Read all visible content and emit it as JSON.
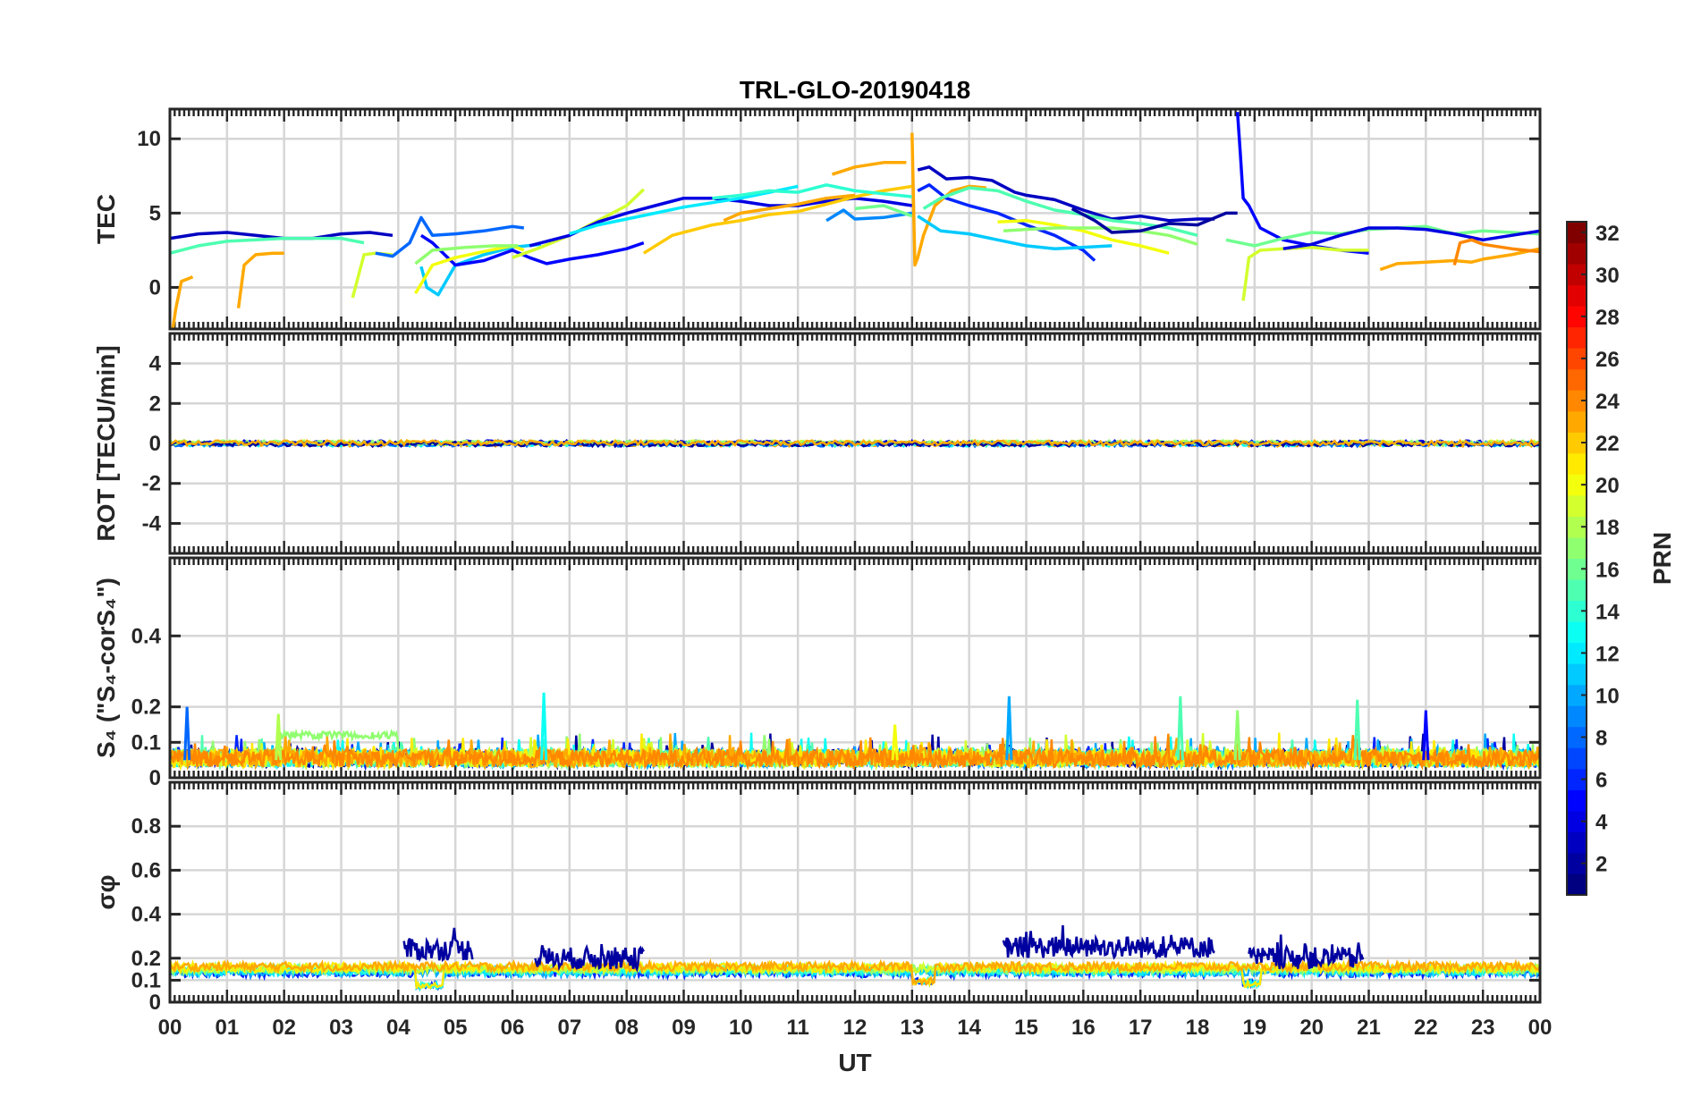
{
  "chart_data": {
    "type": "line",
    "title": "TRL-GLO-20190418",
    "xlabel": "UT",
    "x_range": [
      0,
      24
    ],
    "x_ticks": [
      "00",
      "01",
      "02",
      "03",
      "04",
      "05",
      "06",
      "07",
      "08",
      "09",
      "10",
      "11",
      "12",
      "13",
      "14",
      "15",
      "16",
      "17",
      "18",
      "19",
      "20",
      "21",
      "22",
      "23",
      "00"
    ],
    "colorbar": {
      "label": "PRN",
      "range": [
        1,
        32
      ],
      "ticks": [
        "2",
        "4",
        "6",
        "8",
        "10",
        "12",
        "14",
        "16",
        "18",
        "20",
        "22",
        "24",
        "26",
        "28",
        "30",
        "32"
      ],
      "colormap": "jet"
    },
    "panels": [
      {
        "id": "tec",
        "ylabel": "TEC",
        "ylim": [
          -2.8,
          12
        ],
        "yticks": [
          "0",
          "5",
          "10"
        ],
        "series": [
          {
            "prn": 3,
            "x": [
              0,
              0.5,
              1,
              1.5,
              2,
              2.5,
              3,
              3.5,
              3.9
            ],
            "y": [
              3.3,
              3.6,
              3.7,
              3.5,
              3.3,
              3.3,
              3.6,
              3.7,
              3.5
            ]
          },
          {
            "prn": 23,
            "x": [
              0.05,
              0.1,
              0.2,
              0.4
            ],
            "y": [
              -2.8,
              -1.5,
              0.4,
              0.7
            ]
          },
          {
            "prn": 23,
            "x": [
              1.2,
              1.3,
              1.5,
              1.8,
              2
            ],
            "y": [
              -1.4,
              1.5,
              2.2,
              2.3,
              2.3
            ]
          },
          {
            "prn": 15,
            "x": [
              0,
              0.5,
              1,
              1.5,
              2,
              2.5,
              3,
              3.4
            ],
            "y": [
              2.3,
              2.8,
              3.1,
              3.2,
              3.3,
              3.3,
              3.3,
              3
            ]
          },
          {
            "prn": 19,
            "x": [
              3.2,
              3.4,
              3.6,
              3.9
            ],
            "y": [
              -0.7,
              2.2,
              2.3,
              2.2
            ]
          },
          {
            "prn": 8,
            "x": [
              3.6,
              3.9,
              4.2,
              4.4,
              4.6,
              5,
              5.5,
              6,
              6.2
            ],
            "y": [
              2.3,
              2.1,
              3,
              4.7,
              3.5,
              3.6,
              3.8,
              4.1,
              4
            ]
          },
          {
            "prn": 11,
            "x": [
              4.4,
              4.5,
              4.7,
              5,
              5.5,
              6,
              6.5
            ],
            "y": [
              1.4,
              0,
              -0.5,
              1.5,
              2.2,
              2.7,
              2.9
            ]
          },
          {
            "prn": 5,
            "x": [
              4.4,
              4.6,
              5,
              5.5,
              6,
              6.3,
              6.6,
              7,
              7.5,
              8,
              8.3
            ],
            "y": [
              3.5,
              3,
              1.5,
              1.8,
              2.5,
              2,
              1.6,
              1.9,
              2.2,
              2.6,
              3
            ]
          },
          {
            "prn": 20,
            "x": [
              4.3,
              4.6,
              5,
              5.6,
              6,
              6.2
            ],
            "y": [
              -0.4,
              1.5,
              2,
              2.5,
              2.8,
              2.5
            ]
          },
          {
            "prn": 17,
            "x": [
              4.3,
              4.6,
              5.2,
              5.7,
              6.1
            ],
            "y": [
              1.6,
              2.5,
              2.7,
              2.8,
              2.8
            ]
          },
          {
            "prn": 19,
            "x": [
              6,
              6.5,
              7,
              7.5,
              8,
              8.3
            ],
            "y": [
              2,
              2.7,
              3.5,
              4.5,
              5.5,
              6.6
            ]
          },
          {
            "prn": 4,
            "x": [
              6.3,
              7,
              7.5,
              8,
              8.5,
              9,
              9.5,
              10,
              10.5,
              11,
              11.5,
              12,
              12.5,
              13
            ],
            "y": [
              2.8,
              3.5,
              4.4,
              5,
              5.5,
              6,
              6,
              5.8,
              5.5,
              5.5,
              5.8,
              6,
              5.8,
              5.5
            ]
          },
          {
            "prn": 22,
            "x": [
              8.3,
              8.8,
              9.5,
              10,
              10.5,
              11,
              11.5,
              12,
              12.5,
              13
            ],
            "y": [
              2.3,
              3.5,
              4.2,
              4.5,
              4.9,
              5.1,
              5.6,
              6.1,
              6.5,
              6.8
            ]
          },
          {
            "prn": 12,
            "x": [
              7,
              7.5,
              8,
              8.5,
              9,
              9.5,
              10,
              10.5,
              11
            ],
            "y": [
              3.6,
              4.2,
              4.6,
              5,
              5.4,
              5.7,
              6,
              6.4,
              6.8
            ]
          },
          {
            "prn": 14,
            "x": [
              9.5,
              10,
              10.5,
              11,
              11.5,
              12,
              12.5,
              13
            ],
            "y": [
              6,
              6.2,
              6.5,
              6.4,
              6.9,
              6.5,
              6.3,
              6.1
            ]
          },
          {
            "prn": 23,
            "x": [
              9.7,
              10,
              10.5,
              11,
              11.5,
              12
            ],
            "y": [
              4.5,
              5,
              5.3,
              5.6,
              6,
              6.2
            ]
          },
          {
            "prn": 23,
            "x": [
              11.6,
              12,
              12.5,
              12.9
            ],
            "y": [
              7.6,
              8.1,
              8.4,
              8.4
            ]
          },
          {
            "prn": 9,
            "x": [
              11.5,
              11.8,
              12,
              12.5,
              13
            ],
            "y": [
              4.5,
              5.2,
              4.6,
              4.7,
              5
            ]
          },
          {
            "prn": 16,
            "x": [
              12,
              12.5,
              13
            ],
            "y": [
              5.3,
              5.5,
              4.8
            ]
          },
          {
            "prn": 23,
            "x": [
              13,
              13.05,
              13.1,
              13.2,
              13.4,
              13.7,
              14,
              14.3
            ],
            "y": [
              10.4,
              1.5,
              2,
              3.5,
              5.5,
              6.5,
              6.8,
              6.7
            ]
          },
          {
            "prn": 3,
            "x": [
              13.1,
              13.3,
              13.6,
              14,
              14.4,
              14.8,
              15,
              15.5,
              16,
              16.5,
              17,
              17.5,
              18,
              18.3
            ],
            "y": [
              7.9,
              8.1,
              7.3,
              7.4,
              7.2,
              6.4,
              6.2,
              5.9,
              5.2,
              4.6,
              4.8,
              4.5,
              4.6,
              4.6
            ]
          },
          {
            "prn": 6,
            "x": [
              13.1,
              13.3,
              13.6,
              14,
              14.5,
              15,
              15.5,
              16,
              16.2
            ],
            "y": [
              6.5,
              6.9,
              6,
              5.5,
              5,
              4.2,
              3.5,
              2.5,
              1.8
            ]
          },
          {
            "prn": 11,
            "x": [
              13.1,
              13.5,
              14,
              14.5,
              15,
              15.5,
              16,
              16.5
            ],
            "y": [
              4.8,
              3.8,
              3.6,
              3.2,
              2.8,
              2.6,
              2.7,
              2.8
            ]
          },
          {
            "prn": 15,
            "x": [
              13.2,
              13.5,
              14,
              14.5,
              15,
              15.5,
              16,
              16.5,
              17,
              17.5,
              18
            ],
            "y": [
              5.3,
              6,
              6.7,
              6.5,
              5.8,
              5.2,
              4.9,
              4.5,
              4.3,
              4,
              3.5
            ]
          },
          {
            "prn": 20,
            "x": [
              14.5,
              15,
              15.5,
              16,
              16.5,
              17,
              17.5
            ],
            "y": [
              4.4,
              4.5,
              4.2,
              3.8,
              3.2,
              2.8,
              2.3
            ]
          },
          {
            "prn": 17,
            "x": [
              14.6,
              15,
              15.5,
              16,
              16.5,
              17,
              17.5,
              18
            ],
            "y": [
              3.8,
              3.9,
              4,
              4,
              4,
              3.8,
              3.5,
              2.9
            ]
          },
          {
            "prn": 2,
            "x": [
              15.8,
              16.2,
              16.5,
              17,
              17.5,
              18,
              18.5,
              18.7
            ],
            "y": [
              5.3,
              4.5,
              3.7,
              3.8,
              4.3,
              4.2,
              5,
              5
            ]
          },
          {
            "prn": 5,
            "x": [
              18.7,
              18.75,
              18.8,
              18.9,
              19.1,
              19.5,
              20,
              20.5,
              21
            ],
            "y": [
              11.8,
              9,
              6,
              5.5,
              4,
              3.2,
              2.8,
              2.5,
              2.3
            ]
          },
          {
            "prn": 19,
            "x": [
              18.8,
              18.9,
              19.1,
              19.5,
              20,
              20.5,
              21
            ],
            "y": [
              -0.9,
              2,
              2.5,
              2.6,
              2.7,
              2.5,
              2.5
            ]
          },
          {
            "prn": 16,
            "x": [
              18.5,
              19,
              19.5,
              20,
              20.5,
              21,
              21.5,
              22,
              22.5,
              23,
              24
            ],
            "y": [
              3.2,
              2.8,
              3.3,
              3.7,
              3.6,
              3.9,
              4,
              4.1,
              3.6,
              3.8,
              3.6
            ]
          },
          {
            "prn": 4,
            "x": [
              19.5,
              20,
              20.5,
              21,
              21.5,
              22,
              22.5,
              23,
              23.5,
              24
            ],
            "y": [
              2.6,
              2.9,
              3.5,
              4,
              4,
              3.9,
              3.6,
              3.2,
              3.5,
              3.8
            ]
          },
          {
            "prn": 23,
            "x": [
              21.2,
              21.5,
              22,
              22.5,
              22.8,
              23,
              23.5,
              24
            ],
            "y": [
              1.2,
              1.6,
              1.7,
              1.8,
              1.7,
              1.9,
              2.2,
              2.6
            ]
          },
          {
            "prn": 24,
            "x": [
              22.5,
              22.6,
              22.8,
              23,
              23.5,
              24
            ],
            "y": [
              1.5,
              3,
              3.2,
              2.9,
              2.6,
              2.4
            ]
          }
        ]
      },
      {
        "id": "rot",
        "ylabel": "ROT [TECU/min]",
        "ylim": [
          -5.5,
          5.5
        ],
        "yticks": [
          "-4",
          "-2",
          "0",
          "2",
          "4"
        ],
        "band": {
          "center": 0.0,
          "amplitude": 0.12
        }
      },
      {
        "id": "s4",
        "ylabel": "S₄ (\"S₄-corS₄\")",
        "ylim": [
          0,
          0.62
        ],
        "yticks": [
          "0",
          "0.1",
          "0.2",
          "0.4"
        ],
        "baseline": 0.03,
        "peaks": [
          {
            "x": 0.3,
            "y": 0.2,
            "prn": 8
          },
          {
            "x": 1.9,
            "y": 0.18,
            "prn": 18
          },
          {
            "x": 6.55,
            "y": 0.24,
            "prn": 13
          },
          {
            "x": 12.7,
            "y": 0.15,
            "prn": 20
          },
          {
            "x": 14.7,
            "y": 0.23,
            "prn": 10
          },
          {
            "x": 17.7,
            "y": 0.23,
            "prn": 15
          },
          {
            "x": 18.7,
            "y": 0.19,
            "prn": 17
          },
          {
            "x": 20.8,
            "y": 0.22,
            "prn": 15
          },
          {
            "x": 22,
            "y": 0.19,
            "prn": 5
          }
        ],
        "plateau": {
          "x": [
            1.9,
            4.0
          ],
          "y": 0.12,
          "prn": 17
        }
      },
      {
        "id": "sigma",
        "ylabel": "σφ",
        "ylim": [
          0,
          1
        ],
        "yticks": [
          "0",
          "0.1",
          "0.2",
          "0.4",
          "0.6",
          "0.8"
        ],
        "baseline": 0.15,
        "bursts": [
          {
            "x": [
              4.1,
              5.3
            ],
            "level": 0.24,
            "prn": 2
          },
          {
            "x": [
              6.4,
              8.3
            ],
            "level": 0.2,
            "prn": 2
          },
          {
            "x": [
              14.6,
              18.3
            ],
            "level": 0.25,
            "prn": 2
          },
          {
            "x": [
              18.9,
              20.9
            ],
            "level": 0.2,
            "prn": 2
          }
        ],
        "dips": [
          {
            "x": [
              4.3,
              4.8
            ],
            "level": 0.06,
            "prn": 12
          },
          {
            "x": [
              13,
              13.4
            ],
            "level": 0.08,
            "prn": 23
          },
          {
            "x": [
              18.8,
              19.1
            ],
            "level": 0.07,
            "prn": 12
          }
        ]
      }
    ]
  }
}
